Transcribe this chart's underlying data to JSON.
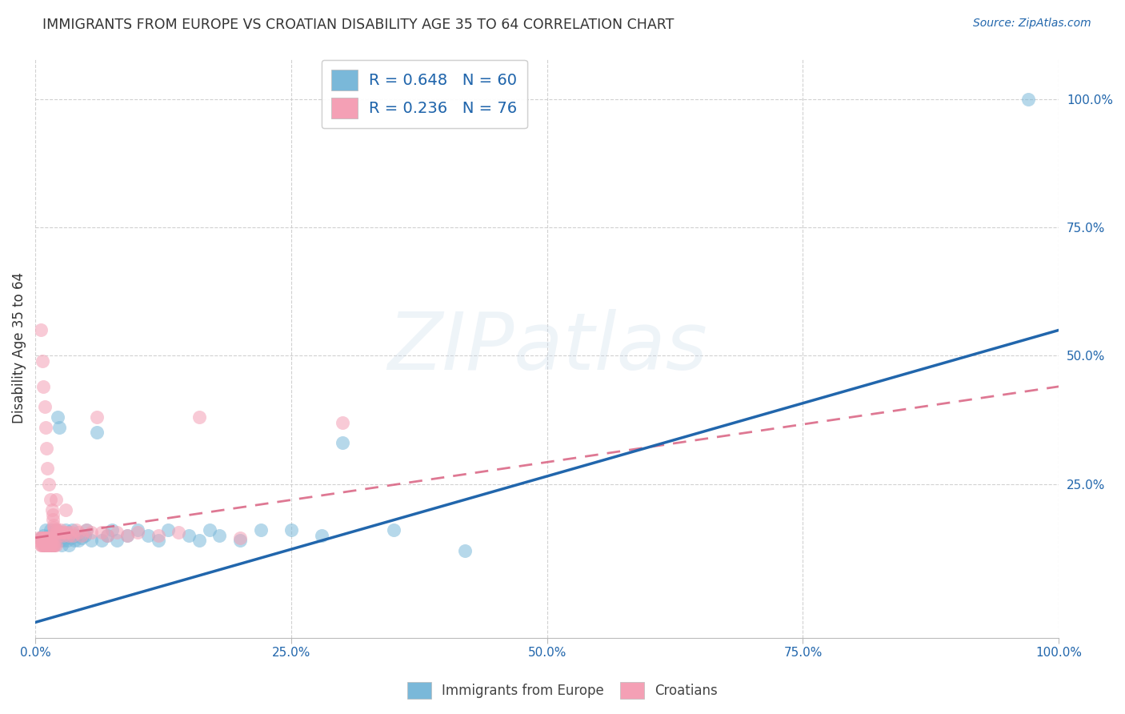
{
  "title": "IMMIGRANTS FROM EUROPE VS CROATIAN DISABILITY AGE 35 TO 64 CORRELATION CHART",
  "source": "Source: ZipAtlas.com",
  "ylabel": "Disability Age 35 to 64",
  "watermark": "ZIPatlas",
  "xlim": [
    0.0,
    1.0
  ],
  "ylim": [
    -0.05,
    1.08
  ],
  "xticks": [
    0.0,
    0.25,
    0.5,
    0.75,
    1.0
  ],
  "xtick_labels": [
    "0.0%",
    "25.0%",
    "50.0%",
    "75.0%",
    "100.0%"
  ],
  "yticks": [
    0.25,
    0.5,
    0.75,
    1.0
  ],
  "ytick_labels": [
    "25.0%",
    "50.0%",
    "75.0%",
    "100.0%"
  ],
  "blue_color": "#7ab8d9",
  "pink_color": "#f4a0b5",
  "blue_line_color": "#2166ac",
  "pink_line_color": "#d96080",
  "accent_color": "#2166ac",
  "text_dark": "#333333",
  "grid_color": "#cccccc",
  "background": "#ffffff",
  "blue_R": 0.648,
  "blue_N": 60,
  "pink_R": 0.236,
  "pink_N": 76,
  "blue_line_x0": 0.0,
  "blue_line_y0": -0.02,
  "blue_line_x1": 1.0,
  "blue_line_y1": 0.55,
  "pink_line_x0": 0.0,
  "pink_line_y0": 0.145,
  "pink_line_x1": 1.0,
  "pink_line_y1": 0.44,
  "blue_x": [
    0.005,
    0.007,
    0.008,
    0.009,
    0.01,
    0.01,
    0.012,
    0.013,
    0.014,
    0.015,
    0.015,
    0.016,
    0.017,
    0.018,
    0.019,
    0.02,
    0.02,
    0.021,
    0.022,
    0.023,
    0.024,
    0.025,
    0.026,
    0.027,
    0.028,
    0.03,
    0.031,
    0.032,
    0.033,
    0.035,
    0.036,
    0.038,
    0.04,
    0.042,
    0.045,
    0.048,
    0.05,
    0.055,
    0.06,
    0.065,
    0.07,
    0.075,
    0.08,
    0.09,
    0.1,
    0.11,
    0.12,
    0.13,
    0.15,
    0.16,
    0.17,
    0.18,
    0.2,
    0.22,
    0.25,
    0.28,
    0.3,
    0.35,
    0.42,
    0.97
  ],
  "blue_y": [
    0.145,
    0.14,
    0.15,
    0.13,
    0.145,
    0.16,
    0.14,
    0.15,
    0.13,
    0.145,
    0.16,
    0.14,
    0.15,
    0.13,
    0.145,
    0.16,
    0.14,
    0.15,
    0.38,
    0.36,
    0.14,
    0.15,
    0.13,
    0.14,
    0.145,
    0.16,
    0.14,
    0.15,
    0.13,
    0.145,
    0.16,
    0.14,
    0.15,
    0.14,
    0.145,
    0.15,
    0.16,
    0.14,
    0.35,
    0.14,
    0.15,
    0.16,
    0.14,
    0.15,
    0.16,
    0.15,
    0.14,
    0.16,
    0.15,
    0.14,
    0.16,
    0.15,
    0.14,
    0.16,
    0.16,
    0.15,
    0.33,
    0.16,
    0.12,
    1.0
  ],
  "pink_x": [
    0.003,
    0.004,
    0.005,
    0.005,
    0.006,
    0.007,
    0.007,
    0.008,
    0.008,
    0.009,
    0.009,
    0.01,
    0.01,
    0.011,
    0.011,
    0.012,
    0.012,
    0.013,
    0.013,
    0.014,
    0.015,
    0.015,
    0.016,
    0.016,
    0.017,
    0.017,
    0.018,
    0.018,
    0.019,
    0.02,
    0.02,
    0.021,
    0.022,
    0.023,
    0.024,
    0.025,
    0.026,
    0.027,
    0.028,
    0.03,
    0.031,
    0.033,
    0.035,
    0.037,
    0.04,
    0.042,
    0.045,
    0.05,
    0.055,
    0.06,
    0.065,
    0.07,
    0.08,
    0.09,
    0.1,
    0.12,
    0.14,
    0.16,
    0.2,
    0.3,
    0.005,
    0.006,
    0.007,
    0.008,
    0.009,
    0.01,
    0.011,
    0.012,
    0.013,
    0.014,
    0.015,
    0.016,
    0.017,
    0.018,
    0.019,
    0.02
  ],
  "pink_y": [
    0.145,
    0.14,
    0.145,
    0.55,
    0.145,
    0.14,
    0.49,
    0.145,
    0.44,
    0.145,
    0.4,
    0.145,
    0.36,
    0.145,
    0.32,
    0.145,
    0.28,
    0.145,
    0.25,
    0.145,
    0.22,
    0.145,
    0.2,
    0.145,
    0.19,
    0.18,
    0.17,
    0.165,
    0.16,
    0.155,
    0.22,
    0.16,
    0.155,
    0.15,
    0.155,
    0.16,
    0.155,
    0.15,
    0.155,
    0.2,
    0.155,
    0.15,
    0.155,
    0.15,
    0.16,
    0.155,
    0.15,
    0.16,
    0.155,
    0.38,
    0.155,
    0.15,
    0.155,
    0.15,
    0.155,
    0.15,
    0.155,
    0.38,
    0.145,
    0.37,
    0.13,
    0.13,
    0.13,
    0.13,
    0.13,
    0.13,
    0.13,
    0.13,
    0.13,
    0.13,
    0.13,
    0.13,
    0.13,
    0.13,
    0.13,
    0.13
  ]
}
